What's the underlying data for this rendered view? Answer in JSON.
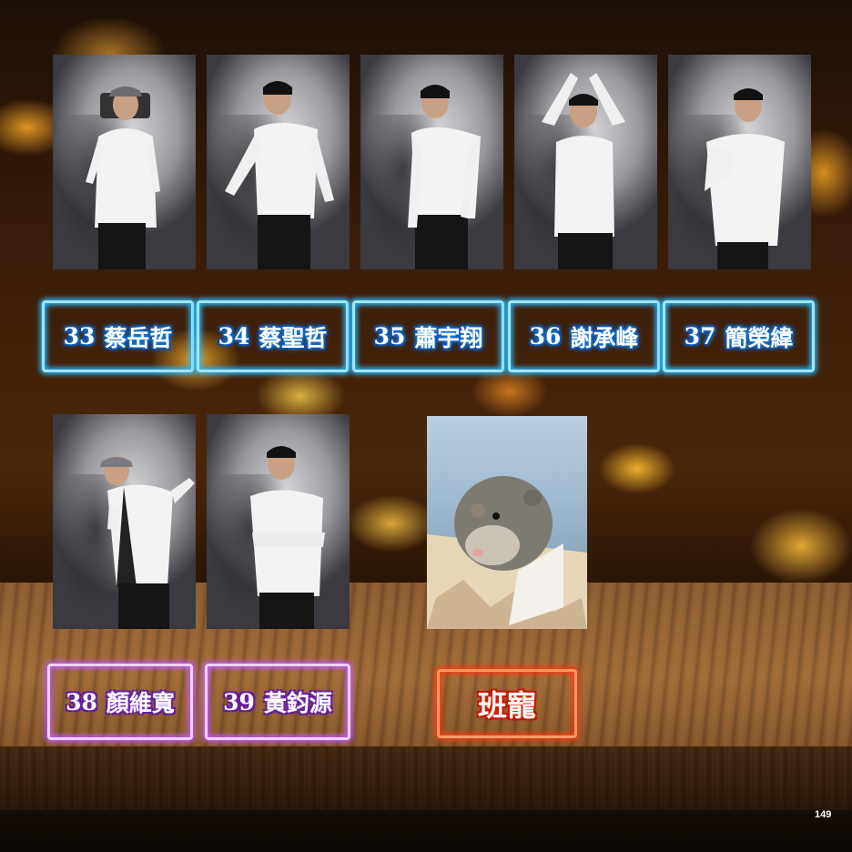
{
  "students": [
    {
      "number": "33",
      "name": "蔡岳哲",
      "color": "#27b8ff"
    },
    {
      "number": "34",
      "name": "蔡聖哲",
      "color": "#27b8ff"
    },
    {
      "number": "35",
      "name": "蕭宇翔",
      "color": "#27b8ff"
    },
    {
      "number": "36",
      "name": "謝承峰",
      "color": "#27b8ff"
    },
    {
      "number": "37",
      "name": "簡榮緯",
      "color": "#27b8ff"
    },
    {
      "number": "38",
      "name": "顏維寬",
      "color": "#c45cff"
    },
    {
      "number": "39",
      "name": "黃鈞源",
      "color": "#c45cff"
    }
  ],
  "class_pet": {
    "label": "班寵",
    "color": "#ff3a10",
    "icon": "hamster-photo"
  },
  "page_number": "149"
}
